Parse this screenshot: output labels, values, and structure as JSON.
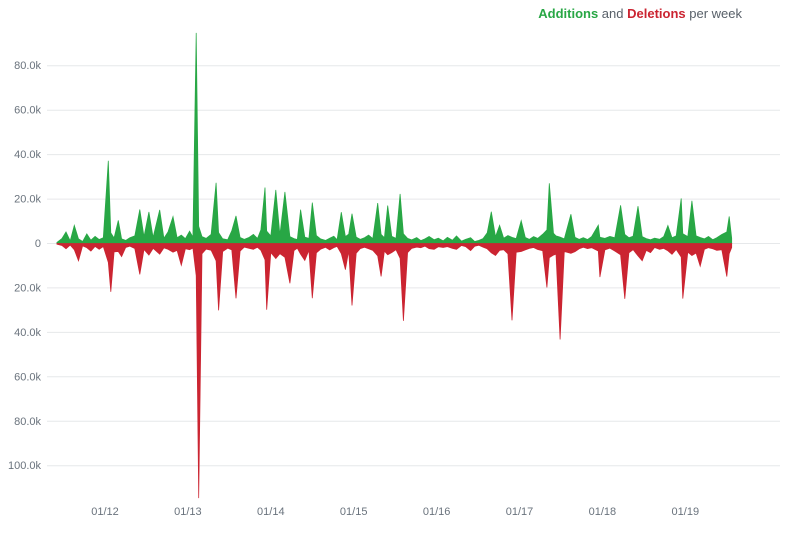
{
  "title": {
    "additions": "Additions",
    "and": " and ",
    "deletions": "Deletions",
    "suffix": " per week"
  },
  "colors": {
    "additions": "#28a745",
    "deletions": "#cb2431",
    "grid": "#e6e8ea",
    "axis_text": "#6a737d",
    "background": "#ffffff"
  },
  "chart_data": {
    "type": "area",
    "title": "Additions and Deletions per week",
    "description": "Mirrored weekly area chart: additions plotted upward in green, deletions plotted downward in red, around a shared zero baseline.",
    "legend_position": "top-right",
    "grid": true,
    "y_axis": {
      "tick_labels": [
        "80.0k",
        "60.0k",
        "40.0k",
        "20.0k",
        "0",
        "20.0k",
        "40.0k",
        "60.0k",
        "80.0k",
        "100.0k"
      ],
      "tick_values": [
        80000,
        60000,
        40000,
        20000,
        0,
        -20000,
        -40000,
        -60000,
        -80000,
        -100000
      ],
      "range": [
        -120000,
        100000
      ]
    },
    "x_axis": {
      "tick_labels": [
        "01/12",
        "01/13",
        "01/14",
        "01/15",
        "01/16",
        "01/17",
        "01/18",
        "01/19"
      ],
      "tick_values": [
        2012,
        2013,
        2014,
        2015,
        2016,
        2017,
        2018,
        2019
      ],
      "range": [
        2011.4,
        2019.6
      ]
    },
    "series": [
      {
        "name": "Additions",
        "color": "#28a745",
        "direction": "up"
      },
      {
        "name": "Deletions",
        "color": "#cb2431",
        "direction": "down"
      }
    ],
    "points_format": [
      "year_fraction",
      "additions",
      "deletions"
    ],
    "points": [
      [
        2011.42,
        500,
        300
      ],
      [
        2011.48,
        2200,
        900
      ],
      [
        2011.53,
        5200,
        2400
      ],
      [
        2011.58,
        1200,
        700
      ],
      [
        2011.63,
        8200,
        2800
      ],
      [
        2011.68,
        2100,
        7800
      ],
      [
        2011.73,
        900,
        1100
      ],
      [
        2011.78,
        4300,
        1900
      ],
      [
        2011.83,
        1500,
        3400
      ],
      [
        2011.88,
        3200,
        1300
      ],
      [
        2011.93,
        1800,
        2600
      ],
      [
        2011.98,
        2600,
        1400
      ],
      [
        2012.04,
        37200,
        8500
      ],
      [
        2012.07,
        4800,
        21800
      ],
      [
        2012.11,
        2500,
        3800
      ],
      [
        2012.16,
        10400,
        3600
      ],
      [
        2012.2,
        2100,
        5900
      ],
      [
        2012.25,
        1400,
        1800
      ],
      [
        2012.3,
        2600,
        1200
      ],
      [
        2012.36,
        3400,
        2300
      ],
      [
        2012.42,
        15300,
        13900
      ],
      [
        2012.47,
        3100,
        2700
      ],
      [
        2012.53,
        14200,
        5200
      ],
      [
        2012.58,
        2800,
        2200
      ],
      [
        2012.66,
        15100,
        4800
      ],
      [
        2012.71,
        2400,
        2000
      ],
      [
        2012.76,
        5200,
        2600
      ],
      [
        2012.82,
        12100,
        3900
      ],
      [
        2012.87,
        2600,
        3100
      ],
      [
        2012.92,
        3800,
        9800
      ],
      [
        2012.97,
        2200,
        2400
      ],
      [
        2013.02,
        5600,
        2800
      ],
      [
        2013.06,
        2900,
        2100
      ],
      [
        2013.1,
        94800,
        14500
      ],
      [
        2013.13,
        7800,
        114600
      ],
      [
        2013.17,
        3100,
        4600
      ],
      [
        2013.22,
        2300,
        2500
      ],
      [
        2013.28,
        4100,
        3000
      ],
      [
        2013.34,
        27300,
        7800
      ],
      [
        2013.37,
        4900,
        30100
      ],
      [
        2013.42,
        2100,
        3600
      ],
      [
        2013.48,
        1700,
        2100
      ],
      [
        2013.53,
        5800,
        2900
      ],
      [
        2013.58,
        12400,
        24700
      ],
      [
        2013.63,
        2700,
        3400
      ],
      [
        2013.68,
        1900,
        1600
      ],
      [
        2013.74,
        2800,
        2200
      ],
      [
        2013.79,
        4100,
        2600
      ],
      [
        2013.84,
        2300,
        1700
      ],
      [
        2013.88,
        6200,
        3100
      ],
      [
        2013.93,
        25200,
        7400
      ],
      [
        2013.95,
        5600,
        29800
      ],
      [
        2014.0,
        3400,
        4100
      ],
      [
        2014.06,
        24100,
        6800
      ],
      [
        2014.11,
        3900,
        4600
      ],
      [
        2014.17,
        23200,
        6200
      ],
      [
        2014.23,
        3100,
        17900
      ],
      [
        2014.28,
        2200,
        3200
      ],
      [
        2014.32,
        1800,
        2100
      ],
      [
        2014.36,
        15200,
        4800
      ],
      [
        2014.41,
        2900,
        7600
      ],
      [
        2014.46,
        2300,
        3100
      ],
      [
        2014.5,
        18400,
        24600
      ],
      [
        2014.55,
        3600,
        4200
      ],
      [
        2014.6,
        2100,
        2600
      ],
      [
        2014.66,
        1400,
        1700
      ],
      [
        2014.71,
        2400,
        2900
      ],
      [
        2014.76,
        3300,
        1900
      ],
      [
        2014.8,
        1700,
        1300
      ],
      [
        2014.85,
        14100,
        4600
      ],
      [
        2014.9,
        3100,
        11800
      ],
      [
        2014.94,
        4200,
        3300
      ],
      [
        2014.98,
        13400,
        27900
      ],
      [
        2015.03,
        2900,
        4400
      ],
      [
        2015.08,
        1900,
        2300
      ],
      [
        2015.13,
        2600,
        1700
      ],
      [
        2015.18,
        3800,
        2400
      ],
      [
        2015.23,
        2200,
        3100
      ],
      [
        2015.29,
        18200,
        5600
      ],
      [
        2015.33,
        4100,
        14800
      ],
      [
        2015.37,
        2600,
        3400
      ],
      [
        2015.41,
        17100,
        5100
      ],
      [
        2015.46,
        3200,
        4100
      ],
      [
        2015.51,
        2300,
        2800
      ],
      [
        2015.56,
        22300,
        6700
      ],
      [
        2015.6,
        4400,
        34800
      ],
      [
        2015.65,
        2300,
        4100
      ],
      [
        2015.7,
        1600,
        2200
      ],
      [
        2015.76,
        2700,
        1600
      ],
      [
        2015.81,
        1300,
        1900
      ],
      [
        2015.86,
        2100,
        1200
      ],
      [
        2015.91,
        3200,
        2300
      ],
      [
        2015.97,
        1700,
        2600
      ],
      [
        2016.02,
        2400,
        1500
      ],
      [
        2016.08,
        1200,
        1800
      ],
      [
        2016.13,
        2800,
        1400
      ],
      [
        2016.19,
        1500,
        2200
      ],
      [
        2016.24,
        3400,
        2600
      ],
      [
        2016.3,
        1100,
        900
      ],
      [
        2016.35,
        1900,
        1400
      ],
      [
        2016.41,
        2600,
        3200
      ],
      [
        2016.46,
        900,
        1200
      ],
      [
        2016.51,
        1400,
        800
      ],
      [
        2016.56,
        2200,
        1600
      ],
      [
        2016.61,
        4800,
        2400
      ],
      [
        2016.66,
        14300,
        4200
      ],
      [
        2016.71,
        3100,
        5400
      ],
      [
        2016.76,
        8200,
        3100
      ],
      [
        2016.81,
        2400,
        2800
      ],
      [
        2016.86,
        3600,
        4700
      ],
      [
        2016.91,
        2800,
        34600
      ],
      [
        2016.96,
        2200,
        3900
      ],
      [
        2017.02,
        10300,
        3600
      ],
      [
        2017.07,
        2700,
        2900
      ],
      [
        2017.12,
        1900,
        2200
      ],
      [
        2017.17,
        3100,
        1800
      ],
      [
        2017.22,
        2300,
        2700
      ],
      [
        2017.28,
        4200,
        3300
      ],
      [
        2017.33,
        6100,
        19800
      ],
      [
        2017.36,
        27100,
        6400
      ],
      [
        2017.41,
        4600,
        5200
      ],
      [
        2017.44,
        3400,
        4800
      ],
      [
        2017.49,
        2900,
        43200
      ],
      [
        2017.54,
        2100,
        3600
      ],
      [
        2017.62,
        13200,
        4400
      ],
      [
        2017.67,
        2800,
        3700
      ],
      [
        2017.72,
        1900,
        2400
      ],
      [
        2017.77,
        2600,
        1700
      ],
      [
        2017.82,
        1800,
        2300
      ],
      [
        2017.87,
        3100,
        1900
      ],
      [
        2017.95,
        8300,
        3400
      ],
      [
        2017.97,
        2800,
        15100
      ],
      [
        2018.03,
        2300,
        2900
      ],
      [
        2018.09,
        3200,
        2100
      ],
      [
        2018.15,
        2600,
        3400
      ],
      [
        2018.22,
        17200,
        5100
      ],
      [
        2018.27,
        4100,
        24900
      ],
      [
        2018.32,
        2600,
        4200
      ],
      [
        2018.37,
        3300,
        2800
      ],
      [
        2018.43,
        16800,
        5600
      ],
      [
        2018.48,
        3100,
        7800
      ],
      [
        2018.53,
        2200,
        3100
      ],
      [
        2018.58,
        1700,
        4100
      ],
      [
        2018.63,
        2400,
        1800
      ],
      [
        2018.69,
        1900,
        2600
      ],
      [
        2018.74,
        3100,
        2200
      ],
      [
        2018.79,
        8100,
        3300
      ],
      [
        2018.84,
        2600,
        4900
      ],
      [
        2018.89,
        3400,
        2700
      ],
      [
        2018.95,
        20300,
        6100
      ],
      [
        2018.97,
        4400,
        24800
      ],
      [
        2019.03,
        3100,
        3900
      ],
      [
        2019.08,
        19200,
        5400
      ],
      [
        2019.13,
        3400,
        4300
      ],
      [
        2019.18,
        2700,
        10200
      ],
      [
        2019.23,
        2100,
        2600
      ],
      [
        2019.28,
        3200,
        1900
      ],
      [
        2019.33,
        1700,
        2400
      ],
      [
        2019.38,
        2600,
        3100
      ],
      [
        2019.44,
        4100,
        2800
      ],
      [
        2019.5,
        5200,
        14900
      ],
      [
        2019.53,
        12200,
        4600
      ],
      [
        2019.56,
        2400,
        1800
      ]
    ]
  }
}
